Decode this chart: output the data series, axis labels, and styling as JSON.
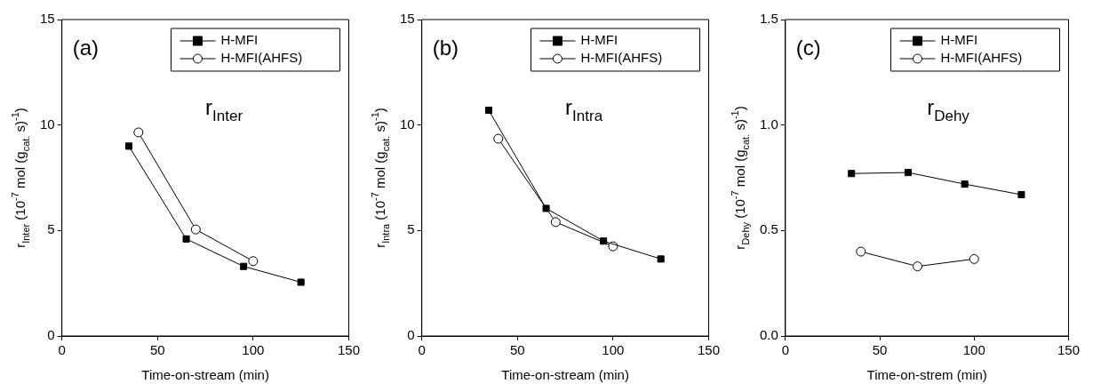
{
  "chart_data": [
    {
      "type": "line",
      "xlabel": "Time-on-stream (min)",
      "ylabel": "r$_{Inter}$ (10$^{-7}$ mol (g$_{cat.}$ s)$^{-1}$)",
      "xlim": [
        0,
        150
      ],
      "xticks": [
        0,
        50,
        100,
        150
      ],
      "ylim": [
        0,
        15
      ],
      "yticks": [
        0,
        5,
        10,
        15
      ],
      "legend": "top right",
      "annotations": [
        "(a)",
        "r$_{Inter}$"
      ],
      "series": [
        {
          "name": "H-MFI",
          "color": "#000000",
          "marker": "square",
          "x": [
            35,
            65,
            95,
            125
          ],
          "values": [
            9.0,
            4.6,
            3.3,
            2.55
          ]
        },
        {
          "name": "H-MFI(AHFS)",
          "color": "#000000",
          "marker": "circle",
          "x": [
            40,
            70,
            100
          ],
          "values": [
            9.65,
            5.05,
            3.55
          ]
        }
      ]
    },
    {
      "type": "line",
      "xlabel": "Time-on-stream (min)",
      "ylabel": "r$_{Intra}$ (10$^{-7}$ mol (g$_{cat.}$ s)$^{-1}$)",
      "xlim": [
        0,
        150
      ],
      "xticks": [
        0,
        50,
        100,
        150
      ],
      "ylim": [
        0,
        15
      ],
      "yticks": [
        0,
        5,
        10,
        15
      ],
      "legend": "top right",
      "annotations": [
        "(b)",
        "r$_{Intra}$"
      ],
      "series": [
        {
          "name": "H-MFI",
          "color": "#000000",
          "marker": "square",
          "x": [
            35,
            65,
            95,
            125
          ],
          "values": [
            10.7,
            6.05,
            4.5,
            3.65
          ]
        },
        {
          "name": "H-MFI(AHFS)",
          "color": "#000000",
          "marker": "circle",
          "x": [
            40,
            70,
            100
          ],
          "values": [
            9.35,
            5.4,
            4.25
          ]
        }
      ]
    },
    {
      "type": "line",
      "xlabel": "Time-on-strem (min)",
      "ylabel": "r$_{Dehy}$ (10$^{-7}$ mol (g$_{cat.}$ s)$^{-1}$)",
      "xlim": [
        0,
        150
      ],
      "xticks": [
        0,
        50,
        100,
        150
      ],
      "ylim": [
        0,
        1.5
      ],
      "yticks": [
        {
          "value": 0,
          "label": "0.0"
        },
        0.5,
        {
          "value": 1,
          "label": "1.0"
        },
        1.5
      ],
      "legend": "top right",
      "annotations": [
        "(c)",
        "r$_{Dehy}$"
      ],
      "series": [
        {
          "name": "H-MFI",
          "color": "#000000",
          "marker": "square",
          "x": [
            35,
            65,
            95,
            125
          ],
          "values": [
            0.77,
            0.775,
            0.72,
            0.67
          ]
        },
        {
          "name": "H-MFI(AHFS)",
          "color": "#000000",
          "marker": "circle",
          "x": [
            40,
            70,
            100
          ],
          "values": [
            0.4,
            0.33,
            0.365
          ]
        }
      ]
    }
  ]
}
